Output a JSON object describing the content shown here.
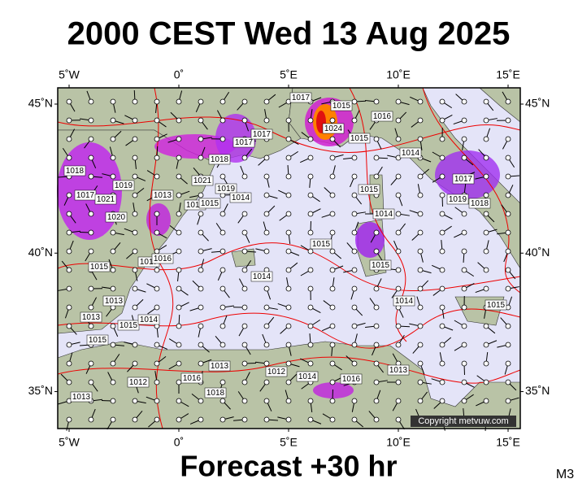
{
  "header": {
    "title": "2000 CEST Wed 13 Aug 2025"
  },
  "footer": {
    "forecast": "Forecast +30 hr",
    "model": "M3"
  },
  "copyright": "Copyright metvuw.com",
  "map": {
    "lon_ticks": [
      {
        "value": -5,
        "label": "5˚W"
      },
      {
        "value": 0,
        "label": "0˚"
      },
      {
        "value": 5,
        "label": "5˚E"
      },
      {
        "value": 10,
        "label": "10˚E"
      },
      {
        "value": 15,
        "label": "15˚E"
      }
    ],
    "lat_ticks": [
      {
        "value": 45,
        "label": "45˚N"
      },
      {
        "value": 40,
        "label": "40˚N"
      },
      {
        "value": 35,
        "label": "35˚N"
      }
    ],
    "isobar_labels": [
      "1018",
      "1017",
      "1021",
      "1020",
      "1019",
      "1015",
      "1013",
      "1014",
      "1015",
      "1018",
      "1017",
      "1017",
      "1021",
      "1019",
      "1014",
      "1017",
      "1015",
      "1024",
      "1015",
      "1016",
      "1014",
      "1015",
      "1014",
      "1015",
      "1014",
      "1015",
      "1017",
      "1018",
      "1019",
      "1015",
      "1014",
      "1013",
      "1015",
      "1014",
      "1015",
      "1013",
      "1016",
      "1012",
      "1014",
      "1016",
      "1013",
      "1013",
      "1012",
      "1018",
      "1017",
      "1016",
      "1013"
    ]
  }
}
